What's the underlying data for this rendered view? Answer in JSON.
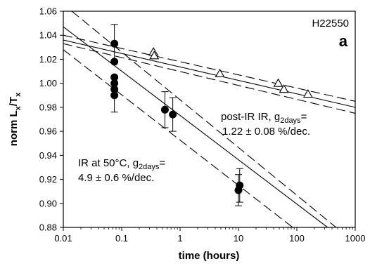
{
  "chart_data": {
    "type": "scatter",
    "sample_id": "H22550",
    "panel_label": "a",
    "xlabel": "time (hours)",
    "ylabel_main": "norm L",
    "ylabel_sub1": "x",
    "ylabel_mid": "/T",
    "ylabel_sub2": "x",
    "x_scale": "log",
    "xlim": [
      0.01,
      1000
    ],
    "ylim": [
      0.88,
      1.06
    ],
    "x_ticks": [
      0.01,
      0.1,
      1,
      10,
      100,
      1000
    ],
    "x_tick_labels": [
      "0.01",
      "0.1",
      "1",
      "10",
      "100",
      "1000"
    ],
    "y_ticks": [
      0.88,
      0.9,
      0.92,
      0.94,
      0.96,
      0.98,
      1.0,
      1.02,
      1.04,
      1.06
    ],
    "y_tick_labels": [
      "0.88",
      "0.90",
      "0.92",
      "0.94",
      "0.96",
      "0.98",
      "1.00",
      "1.02",
      "1.04",
      "1.06"
    ],
    "grid": false,
    "series": [
      {
        "marker": "filled-circle",
        "color": "#000000",
        "points": [
          {
            "x": 0.075,
            "y": 1.033,
            "err": 0.016
          },
          {
            "x": 0.075,
            "y": 1.018
          },
          {
            "x": 0.075,
            "y": 1.005
          },
          {
            "x": 0.075,
            "y": 1.0
          },
          {
            "x": 0.075,
            "y": 0.995
          },
          {
            "x": 0.075,
            "y": 0.99,
            "err": 0.014
          },
          {
            "x": 0.55,
            "y": 0.978,
            "err": 0.015
          },
          {
            "x": 0.75,
            "y": 0.974,
            "err": 0.014
          },
          {
            "x": 10,
            "y": 0.911,
            "err": 0.013
          },
          {
            "x": 10.5,
            "y": 0.915,
            "err": 0.014
          }
        ],
        "fit": {
          "x1": 0.01,
          "y1": 1.047,
          "x2": 336,
          "y2": 0.88
        },
        "confidence": [
          {
            "x1": 0.014,
            "y1": 1.06,
            "x2": 470,
            "y2": 0.88
          },
          {
            "x1": 0.01,
            "y1": 1.028,
            "x2": 85,
            "y2": 0.88
          }
        ],
        "annotation": {
          "line1_a": "IR at 50°C, g",
          "line1_sub": "2days",
          "line1_b": "=",
          "line2": "4.9 ± 0.6 %/dec."
        }
      },
      {
        "marker": "open-triangle",
        "color": "#000000",
        "points": [
          {
            "x": 0.35,
            "y": 1.026
          },
          {
            "x": 0.36,
            "y": 1.023
          },
          {
            "x": 4.8,
            "y": 1.008
          },
          {
            "x": 48,
            "y": 1.0
          },
          {
            "x": 60,
            "y": 0.995
          },
          {
            "x": 155,
            "y": 0.991
          }
        ],
        "fit": {
          "x1": 0.01,
          "y1": 1.036,
          "x2": 1000,
          "y2": 0.98
        },
        "confidence": [
          {
            "x1": 0.01,
            "y1": 1.04,
            "x2": 1000,
            "y2": 0.985
          },
          {
            "x1": 0.01,
            "y1": 1.033,
            "x2": 1000,
            "y2": 0.975
          }
        ],
        "annotation": {
          "line1_a": "post-IR IR, g",
          "line1_sub": "2days",
          "line1_b": "=",
          "line2": "1.22 ± 0.08 %/dec."
        }
      }
    ]
  }
}
